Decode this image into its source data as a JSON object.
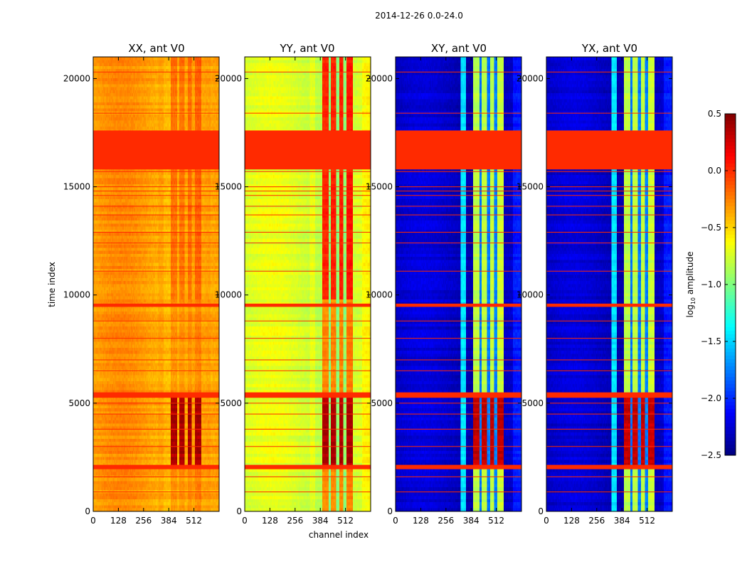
{
  "chart_data": {
    "type": "heatmap",
    "suptitle": "2014-12-26 0.0-24.0",
    "xlabel": "channel index",
    "ylabel": "time index",
    "x_range": [
      0,
      640
    ],
    "y_range": [
      0,
      21000
    ],
    "x_ticks": [
      "0",
      "128",
      "256",
      "384",
      "512"
    ],
    "x_tick_values": [
      0,
      128,
      256,
      384,
      512
    ],
    "y_ticks": [
      "0",
      "5000",
      "10000",
      "15000",
      "20000"
    ],
    "y_tick_values": [
      0,
      5000,
      10000,
      15000,
      20000
    ],
    "flagged_fill_value": 0.0,
    "flagged_blocks": [
      [
        15800,
        17600
      ],
      [
        9450,
        9600
      ],
      [
        5250,
        5500
      ],
      [
        1950,
        2150
      ]
    ],
    "flagged_lines": [
      20300,
      18400,
      15700,
      15000,
      14800,
      14600,
      14100,
      13700,
      12900,
      12400,
      11100,
      9500,
      8800,
      8000,
      7000,
      6500,
      5300,
      5000,
      4500,
      3800,
      3000,
      1600,
      900
    ],
    "bands": {
      "sat": [
        [
          395,
          425
        ],
        [
          440,
          465
        ],
        [
          480,
          500
        ],
        [
          520,
          548
        ]
      ],
      "dim": [
        [
          425,
          440
        ],
        [
          465,
          480
        ],
        [
          500,
          520
        ]
      ],
      "ridge": [
        [
          330,
          360
        ]
      ],
      "edge": [
        [
          600,
          640
        ]
      ]
    },
    "panels": [
      {
        "title": "XX, ant V0",
        "show_y_ticks": true,
        "base": -0.35,
        "ridge": 0.05,
        "sat_band": 0.12,
        "dim_band": 0.05,
        "edge": -0.05,
        "burst": 0.72,
        "late_sat_boost": 0.1
      },
      {
        "title": "YY, ant V0",
        "show_y_ticks": true,
        "base": -0.75,
        "ridge": 0.1,
        "sat_band": 0.55,
        "dim_band": -0.15,
        "edge": 0.1,
        "burst": 1.1,
        "late_sat_boost": 0.3
      },
      {
        "title": "XY, ant V0",
        "show_y_ticks": true,
        "base": -2.3,
        "ridge": 0.9,
        "sat_band": 1.55,
        "dim_band": 0.6,
        "edge": 0.2,
        "burst": 2.6,
        "late_sat_boost": 0.0
      },
      {
        "title": "YX, ant V0",
        "show_y_ticks": true,
        "base": -2.3,
        "ridge": 0.9,
        "sat_band": 1.55,
        "dim_band": 0.6,
        "edge": 0.2,
        "burst": 2.6,
        "late_sat_boost": 0.0
      }
    ],
    "colorbar": {
      "label_main": "log",
      "label_sub": "10",
      "label_rest": " amplitude",
      "range": [
        -2.5,
        0.5
      ],
      "ticks": [
        "0.5",
        "0.0",
        "−0.5",
        "−1.0",
        "−1.5",
        "−2.0",
        "−2.5"
      ],
      "tick_values": [
        0.5,
        0.0,
        -0.5,
        -1.0,
        -1.5,
        -2.0,
        -2.5
      ],
      "colormap": "jet"
    }
  }
}
